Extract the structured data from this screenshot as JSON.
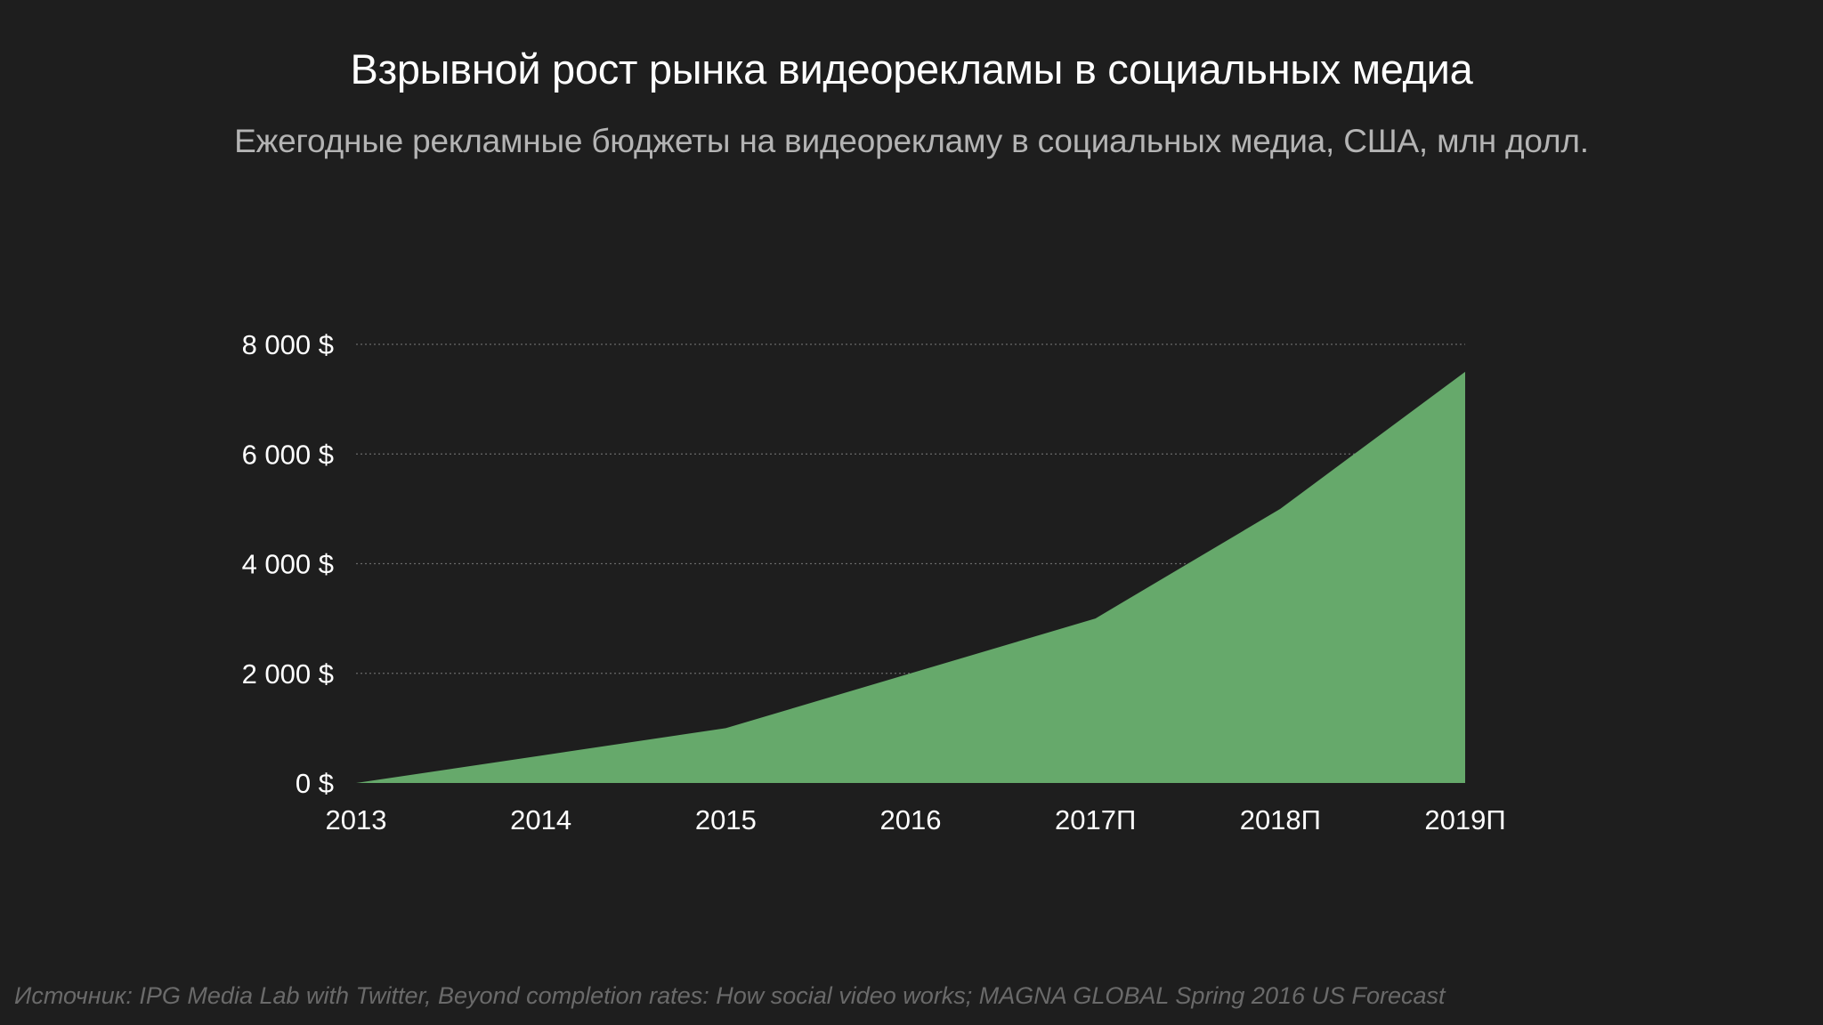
{
  "header": {
    "title": "Взрывной рост рынка видеорекламы в социальных медиа",
    "subtitle": "Ежегодные рекламные бюджеты на видеорекламу в социальных медиа, США, млн долл."
  },
  "footer": {
    "source": "Источник: IPG Media Lab with Twitter, Beyond completion rates: How social video works; MAGNA GLOBAL Spring 2016 US Forecast"
  },
  "colors": {
    "background": "#1e1e1e",
    "area_fill": "#66a96b",
    "gridline": "#6a6a6a",
    "text": "#ffffff",
    "subtitle": "#b4b4b4",
    "source": "#6a6a6a"
  },
  "chart_data": {
    "type": "area",
    "title": "Взрывной рост рынка видеорекламы в социальных медиа",
    "subtitle": "Ежегодные рекламные бюджеты на видеорекламу в социальных медиа, США, млн долл.",
    "categories": [
      "2013",
      "2014",
      "2015",
      "2016",
      "2017П",
      "2018П",
      "2019П"
    ],
    "series": [
      {
        "values": [
          0,
          500,
          1000,
          2000,
          3000,
          5000,
          7500
        ]
      }
    ],
    "y_ticks": [
      0,
      2000,
      4000,
      6000,
      8000
    ],
    "y_tick_labels": [
      "0 $",
      "2 000 $",
      "4 000 $",
      "6 000 $",
      "8 000 $"
    ],
    "ylim": [
      0,
      8000
    ],
    "grid": true,
    "legend": "none"
  }
}
